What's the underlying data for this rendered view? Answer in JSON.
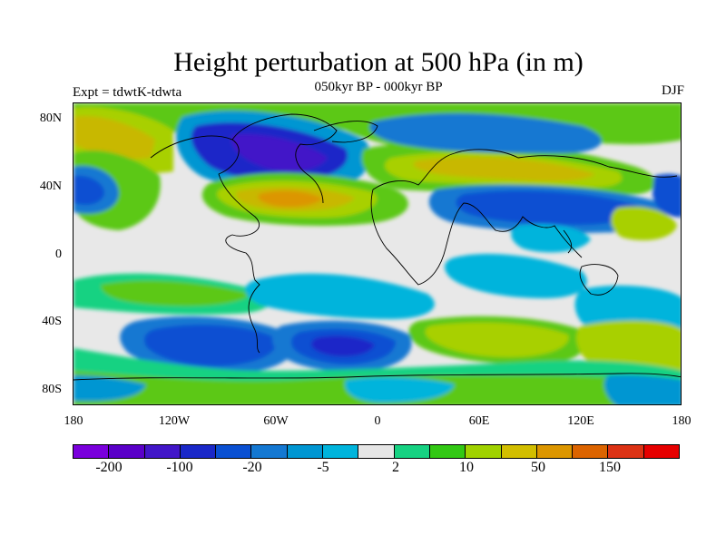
{
  "header": {
    "title": "Height perturbation at 500 hPa (in m)",
    "subtitle": "050kyr BP - 000kyr BP",
    "left_label": "Expt = tdwtK-tdwta",
    "right_label": "DJF"
  },
  "axes": {
    "lat_ticks": [
      "80N",
      "40N",
      "0",
      "40S",
      "80S"
    ],
    "lon_ticks": [
      "180",
      "120W",
      "60W",
      "0",
      "60E",
      "120E",
      "180"
    ]
  },
  "colorbar": {
    "colors": [
      "#7a00dc",
      "#5a00c8",
      "#4216c8",
      "#1a28c8",
      "#0a50d2",
      "#1478d2",
      "#0096d2",
      "#00b4dc",
      "#e6e6e6",
      "#16d282",
      "#32c814",
      "#a0d200",
      "#d2be00",
      "#dc9600",
      "#dc6400",
      "#dc3214",
      "#e60000"
    ],
    "labels": [
      "-200",
      "-100",
      "-20",
      "-5",
      "2",
      "10",
      "50",
      "150"
    ]
  }
}
